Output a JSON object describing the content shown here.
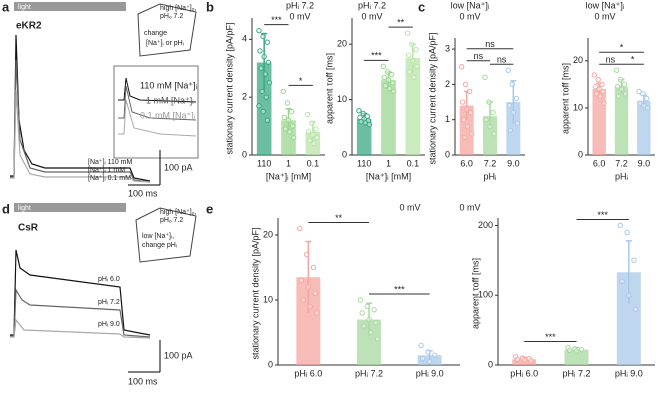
{
  "figure": {
    "a": {
      "letter": "a",
      "light": "light",
      "title": "eKR2",
      "traces": [
        "[Na⁺]ᵢ 110 mM",
        "[Na⁺]ᵢ 1 mM",
        "[Na⁺]ᵢ 0.1 mM"
      ],
      "inset": [
        "110 mM [Na⁺]ᵢ",
        "1 mM [Na⁺]ᵢ",
        "0.1 mM [Na⁺]ᵢ"
      ],
      "cartoon": [
        "high [Na⁺]ₒ,",
        "pHₒ 7.2",
        "change",
        "[Na⁺]ᵢ or pHᵢ"
      ],
      "scale": [
        "100 pA",
        "100 ms"
      ]
    },
    "b": {
      "letter": "b"
    },
    "c": {
      "letter": "c"
    },
    "d": {
      "letter": "d",
      "light": "light",
      "title": "CsR",
      "traces": [
        "pHᵢ 6.0",
        "pHᵢ 7.2",
        "pHᵢ 9.0"
      ],
      "cartoon": [
        "high [Na⁺]ₒ,",
        "pHₒ 7.2",
        "low [Na⁺]ᵢ,",
        "change pHᵢ"
      ],
      "scale": [
        "100 pA",
        "100 ms"
      ]
    },
    "e": {
      "letter": "e"
    }
  },
  "chart_data": [
    {
      "type": "bar",
      "notes": [
        "pHᵢ 7.2",
        "0 mV"
      ],
      "ylabel": "stationary current density [pA/pF]",
      "xlabel": "[Na⁺]ᵢ [mM]",
      "categories": [
        "110",
        "1",
        "0.1"
      ],
      "values": [
        3.2,
        1.2,
        0.8
      ],
      "errors": [
        1.0,
        0.4,
        0.35
      ],
      "colors": [
        "#3aa882",
        "#9ad68f",
        "#b8e4a8"
      ],
      "points": [
        [
          4.3,
          4.1,
          3.9,
          3.6,
          3.4,
          3.2,
          3.0,
          2.8,
          2.5,
          2.2,
          2.0,
          1.7,
          1.5,
          1.2
        ],
        [
          2.2,
          1.8,
          1.5,
          1.3,
          1.2,
          1.0,
          0.9,
          0.8,
          0.6
        ],
        [
          1.4,
          1.1,
          0.9,
          0.8,
          0.7,
          0.6,
          0.5,
          0.4
        ]
      ],
      "ylim": [
        0,
        4.6
      ],
      "yticks": [
        0,
        2,
        4
      ],
      "significance": [
        {
          "from": 0,
          "to": 1,
          "label": "***"
        },
        {
          "from": 1,
          "to": 2,
          "label": "*"
        }
      ]
    },
    {
      "type": "bar",
      "notes": [
        "pHᵢ 7.2",
        "0 mV"
      ],
      "ylabel": "apparent τoff [ms]",
      "xlabel": "[Na⁺]ᵢ [mM]",
      "categories": [
        "110",
        "1",
        "0.1"
      ],
      "values": [
        6.5,
        13.5,
        17.5
      ],
      "errors": [
        1.0,
        1.5,
        2.5
      ],
      "colors": [
        "#3aa882",
        "#9ad68f",
        "#b8e4a8"
      ],
      "points": [
        [
          8,
          7.5,
          7,
          6.8,
          6.5,
          6.2,
          6,
          5.8,
          5.5
        ],
        [
          16,
          15,
          14.5,
          14,
          13.5,
          13,
          12.5,
          12,
          11.5
        ],
        [
          22,
          20,
          19,
          18,
          17,
          16,
          15,
          14
        ]
      ],
      "ylim": [
        0,
        24
      ],
      "yticks": [
        0,
        10,
        20
      ],
      "significance": [
        {
          "from": 0,
          "to": 1,
          "label": "***"
        },
        {
          "from": 1,
          "to": 2,
          "label": "**"
        }
      ]
    },
    {
      "type": "bar",
      "notes": [
        "low [Na⁺]ᵢ",
        "0 mV"
      ],
      "ylabel": "stationary current density [pA/pF]",
      "xlabel": "pHᵢ",
      "categories": [
        "6.0",
        "7.2",
        "9.0"
      ],
      "values": [
        1.4,
        1.1,
        1.5
      ],
      "errors": [
        0.4,
        0.4,
        0.6
      ],
      "colors": [
        "#f4a6a0",
        "#a8d8a0",
        "#a8c8e8"
      ],
      "points": [
        [
          2.5,
          2.0,
          1.8,
          1.5,
          1.3,
          1.2,
          1.0,
          0.8,
          0.6,
          0.5
        ],
        [
          2.2,
          1.5,
          1.2,
          1.0,
          0.8,
          0.6
        ],
        [
          2.4,
          2.0,
          1.6,
          1.4,
          1.2,
          0.9,
          0.7
        ]
      ],
      "ylim": [
        0,
        3.2
      ],
      "yticks": [
        0,
        1,
        2,
        3
      ],
      "significance": [
        {
          "from": 0,
          "to": 1,
          "label": "ns"
        },
        {
          "from": 1,
          "to": 2,
          "label": "ns"
        },
        {
          "from": 0,
          "to": 2,
          "label": "ns"
        }
      ]
    },
    {
      "type": "bar",
      "notes": [
        "low [Na⁺]ᵢ",
        "0 mV"
      ],
      "ylabel": "apparent τoff [ms]",
      "xlabel": "pHᵢ",
      "categories": [
        "6.0",
        "7.2",
        "9.0"
      ],
      "values": [
        14,
        14.5,
        11.5
      ],
      "errors": [
        1.2,
        1.5,
        1.2
      ],
      "colors": [
        "#f4a6a0",
        "#a8d8a0",
        "#a8c8e8"
      ],
      "points": [
        [
          17,
          16,
          15,
          14.5,
          14,
          13.5,
          13,
          12.5,
          11
        ],
        [
          18,
          16,
          15,
          14.5,
          14,
          13,
          12.5
        ],
        [
          13.5,
          13,
          12,
          11,
          10.5,
          10
        ]
      ],
      "ylim": [
        0,
        24
      ],
      "yticks": [
        0,
        10,
        20
      ],
      "significance": [
        {
          "from": 0,
          "to": 1,
          "label": "ns"
        },
        {
          "from": 1,
          "to": 2,
          "label": "*"
        },
        {
          "from": 0,
          "to": 2,
          "label": "*"
        }
      ]
    },
    {
      "type": "bar",
      "notes": [
        "0 mV"
      ],
      "ylabel": "stationary current density [pA/pF]",
      "categories": [
        "pHᵢ 6.0",
        "pHᵢ 7.2",
        "pHᵢ 9.0"
      ],
      "values": [
        13.5,
        7,
        1.5
      ],
      "errors": [
        5.5,
        2.5,
        0.7
      ],
      "colors": [
        "#f4a6a0",
        "#a8d8a0",
        "#a8c8e8"
      ],
      "points": [
        [
          21,
          17,
          15,
          13,
          12,
          11,
          10,
          9,
          8
        ],
        [
          10,
          9,
          8.5,
          8,
          7,
          6.5,
          6,
          5,
          4
        ],
        [
          3,
          2,
          1.5,
          1,
          0.5
        ]
      ],
      "ylim": [
        0,
        22
      ],
      "yticks": [
        0,
        10,
        20
      ],
      "significance": [
        {
          "from": 0,
          "to": 1,
          "label": "**"
        },
        {
          "from": 1,
          "to": 2,
          "label": "***"
        }
      ]
    },
    {
      "type": "bar",
      "notes": [
        "0 mV"
      ],
      "ylabel": "apparent τoff [ms]",
      "categories": [
        "pHᵢ 6.0",
        "pHᵢ 7.2",
        "pHᵢ 9.0"
      ],
      "values": [
        8,
        22,
        133
      ],
      "errors": [
        3,
        3,
        45
      ],
      "colors": [
        "#f4a6a0",
        "#a8d8a0",
        "#a8c8e8"
      ],
      "points": [
        [
          12,
          10,
          9,
          8,
          7,
          6
        ],
        [
          25,
          23,
          22,
          21,
          20
        ],
        [
          200,
          190,
          150,
          120,
          100,
          80
        ]
      ],
      "ylim": [
        0,
        205
      ],
      "yticks": [
        0,
        100,
        200
      ],
      "significance": [
        {
          "from": 0,
          "to": 1,
          "label": "***"
        },
        {
          "from": 1,
          "to": 2,
          "label": "***"
        }
      ]
    }
  ]
}
